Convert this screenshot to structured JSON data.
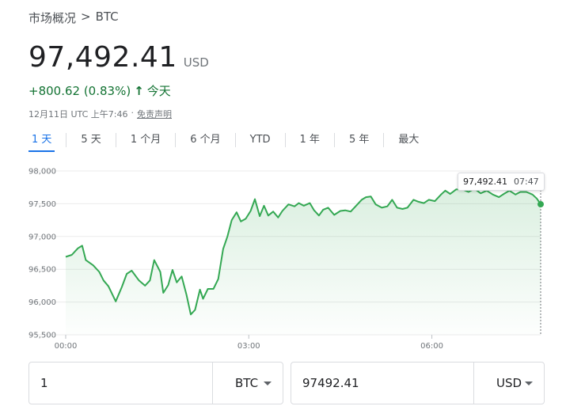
{
  "breadcrumb": {
    "parent": "市场概况",
    "separator": ">",
    "current": "BTC"
  },
  "quote": {
    "price": "97,492.41",
    "currency": "USD",
    "change": "+800.62 (0.83%)",
    "change_arrow": "↑",
    "change_period": "今天",
    "timestamp": "12月11日 UTC 上午7:46",
    "dot": "·",
    "disclaimer": "免责声明",
    "positive_color": "#137333"
  },
  "tabs": [
    {
      "label": "1 天",
      "active": true
    },
    {
      "label": "5 天",
      "active": false
    },
    {
      "label": "1 个月",
      "active": false
    },
    {
      "label": "6 个月",
      "active": false
    },
    {
      "label": "YTD",
      "active": false
    },
    {
      "label": "1 年",
      "active": false
    },
    {
      "label": "5 年",
      "active": false
    },
    {
      "label": "最大",
      "active": false
    }
  ],
  "tooltip": {
    "value": "97,492.41",
    "time": "07:47"
  },
  "chart_data": {
    "type": "line",
    "y_ticks": [
      "98,000",
      "97,500",
      "97,000",
      "96,500",
      "96,000",
      "95,500"
    ],
    "y_tick_values": [
      98000,
      97500,
      97000,
      96500,
      96000,
      95500
    ],
    "ylim": [
      95500,
      98000
    ],
    "x_ticks": [
      "00:00",
      "03:00",
      "06:00"
    ],
    "x_tick_hours": [
      0,
      3,
      6
    ],
    "xlim": [
      0,
      7.783
    ],
    "line_color": "#34a853",
    "grid": true,
    "series": [
      {
        "x": [
          0,
          0.1,
          0.2,
          0.27,
          0.33,
          0.45,
          0.55,
          0.62,
          0.7,
          0.82,
          0.92,
          1.0,
          1.08,
          1.2,
          1.3,
          1.38,
          1.45,
          1.55,
          1.6,
          1.68,
          1.75,
          1.82,
          1.9,
          1.98,
          2.05,
          2.12,
          2.2,
          2.25,
          2.33,
          2.42,
          2.5,
          2.58,
          2.65,
          2.72,
          2.8,
          2.87,
          2.95,
          3.03,
          3.1,
          3.18,
          3.25,
          3.32,
          3.4,
          3.48,
          3.55,
          3.65,
          3.75,
          3.82,
          3.9,
          4.0,
          4.07,
          4.15,
          4.22,
          4.3,
          4.4,
          4.5,
          4.58,
          4.67,
          4.75,
          4.85,
          4.92,
          5.0,
          5.08,
          5.18,
          5.27,
          5.35,
          5.43,
          5.52,
          5.6,
          5.7,
          5.78,
          5.87,
          5.95,
          6.05,
          6.15,
          6.22,
          6.3,
          6.4,
          6.5,
          6.6,
          6.7,
          6.8,
          6.9,
          7.0,
          7.1,
          7.18,
          7.27,
          7.37,
          7.45,
          7.55,
          7.65,
          7.72,
          7.783
        ],
        "y": [
          96690,
          96720,
          96820,
          96860,
          96640,
          96560,
          96460,
          96330,
          96240,
          96010,
          96230,
          96430,
          96480,
          96330,
          96250,
          96330,
          96640,
          96460,
          96140,
          96260,
          96490,
          96300,
          96390,
          96110,
          95810,
          95880,
          96190,
          96050,
          96200,
          96200,
          96350,
          96810,
          97000,
          97250,
          97370,
          97230,
          97270,
          97390,
          97570,
          97310,
          97470,
          97320,
          97380,
          97290,
          97390,
          97490,
          97460,
          97510,
          97470,
          97510,
          97400,
          97320,
          97410,
          97440,
          97330,
          97390,
          97400,
          97380,
          97460,
          97560,
          97600,
          97610,
          97490,
          97440,
          97460,
          97560,
          97440,
          97420,
          97440,
          97560,
          97530,
          97510,
          97560,
          97540,
          97640,
          97700,
          97650,
          97720,
          97720,
          97680,
          97730,
          97660,
          97700,
          97640,
          97600,
          97650,
          97700,
          97640,
          97680,
          97680,
          97640,
          97580,
          97492.41
        ]
      }
    ]
  },
  "converter": {
    "left_value": "1",
    "left_unit": "BTC",
    "right_value": "97492.41",
    "right_unit": "USD"
  }
}
